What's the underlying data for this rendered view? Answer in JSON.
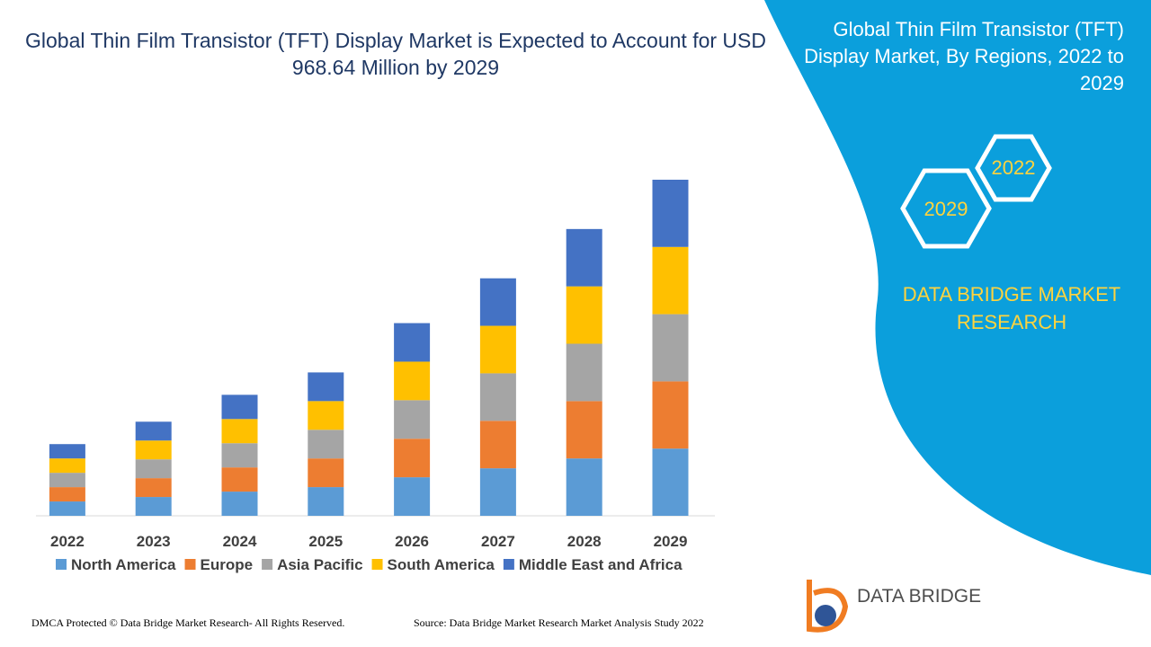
{
  "header": {
    "title": "Global Thin Film Transistor (TFT) Display Market is Expected to Account for USD 968.64 Million by 2029"
  },
  "chart_data": {
    "type": "bar",
    "stacked": true,
    "categories": [
      "2022",
      "2023",
      "2024",
      "2025",
      "2026",
      "2027",
      "2028",
      "2029"
    ],
    "series": [
      {
        "name": "North America",
        "color": "#5b9bd5",
        "values": [
          16,
          21,
          27,
          32,
          43,
          53,
          64,
          75
        ]
      },
      {
        "name": "Europe",
        "color": "#ed7d31",
        "values": [
          16,
          21,
          27,
          32,
          43,
          53,
          64,
          75
        ]
      },
      {
        "name": "Asia Pacific",
        "color": "#a5a5a5",
        "values": [
          16,
          21,
          27,
          32,
          43,
          53,
          64,
          75
        ]
      },
      {
        "name": "South America",
        "color": "#ffc000",
        "values": [
          16,
          21,
          27,
          32,
          43,
          53,
          64,
          75
        ]
      },
      {
        "name": "Middle East and Africa",
        "color": "#4472c4",
        "values": [
          16,
          21,
          27,
          32,
          43,
          53,
          64,
          75
        ]
      }
    ]
  },
  "panel": {
    "title": "Global Thin Film Transistor (TFT) Display Market, By Regions, 2022 to 2029",
    "years": [
      "2022",
      "2029"
    ],
    "brand": "DATA BRIDGE MARKET RESEARCH"
  },
  "logo": {
    "text": "DATA BRIDGE"
  },
  "footer": {
    "left": "DMCA Protected © Data Bridge Market Research- All Rights Reserved.",
    "right": "Source: Data Bridge Market Research Market Analysis Study 2022"
  }
}
